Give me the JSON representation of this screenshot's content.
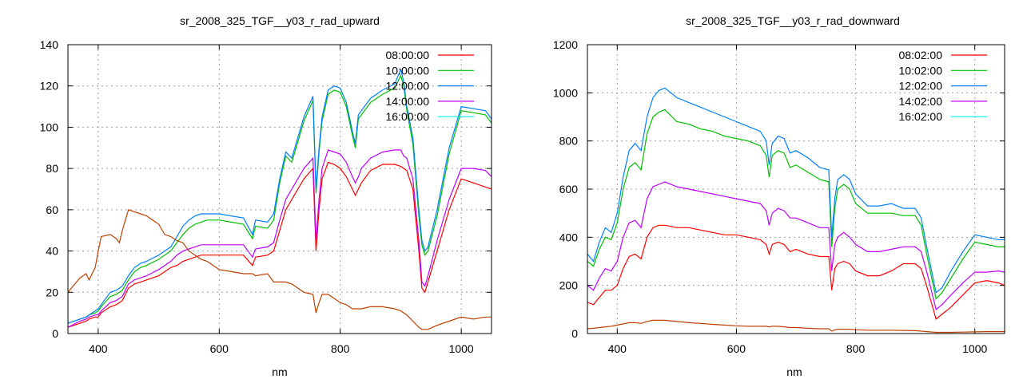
{
  "chart_data": [
    {
      "type": "line",
      "title": "sr_2008_325_TGF__y03_r_rad_upward",
      "xlabel": "nm",
      "ylabel": "",
      "xlim": [
        350,
        1050
      ],
      "ylim": [
        0,
        140
      ],
      "xticks": [
        400,
        600,
        800,
        1000
      ],
      "yticks": [
        0,
        20,
        40,
        60,
        80,
        100,
        120,
        140
      ],
      "grid": true,
      "legend_position": "top-right",
      "x": [
        350,
        370,
        380,
        385,
        395,
        400,
        405,
        420,
        430,
        435,
        440,
        450,
        460,
        470,
        480,
        500,
        510,
        520,
        530,
        540,
        550,
        560,
        570,
        580,
        600,
        620,
        640,
        655,
        660,
        680,
        690,
        700,
        710,
        720,
        740,
        755,
        760,
        765,
        770,
        780,
        790,
        800,
        810,
        820,
        825,
        830,
        835,
        850,
        870,
        890,
        900,
        905,
        910,
        920,
        930,
        935,
        940,
        945,
        960,
        980,
        1000,
        1020,
        1040,
        1050
      ],
      "series": [
        {
          "name": "08:00:00",
          "legend_color": "#ff0000",
          "line_color": "#ff0000",
          "values": [
            3,
            5,
            6,
            7,
            8,
            8,
            10,
            13,
            14,
            15,
            16,
            22,
            24,
            25,
            26,
            28,
            30,
            32,
            33,
            35,
            36,
            37,
            38,
            38,
            38,
            38,
            38,
            33,
            37,
            38,
            40,
            50,
            60,
            65,
            75,
            80,
            40,
            60,
            75,
            83,
            82,
            80,
            76,
            70,
            67,
            70,
            73,
            79,
            82,
            82,
            81,
            80,
            79,
            70,
            40,
            22,
            20,
            25,
            40,
            60,
            75,
            73,
            71,
            70
          ]
        },
        {
          "name": "10:00:00",
          "legend_color": "#00c000",
          "line_color": "#00c000",
          "values": [
            5,
            7,
            8,
            9,
            10,
            11,
            13,
            18,
            19,
            20,
            21,
            26,
            30,
            32,
            33,
            36,
            38,
            40,
            44,
            48,
            51,
            53,
            54,
            55,
            55,
            54,
            53,
            46,
            52,
            51,
            55,
            73,
            86,
            83,
            103,
            113,
            68,
            88,
            103,
            116,
            118,
            117,
            110,
            96,
            90,
            104,
            106,
            112,
            116,
            119,
            125,
            120,
            108,
            92,
            57,
            43,
            38,
            40,
            57,
            87,
            108,
            107,
            106,
            102
          ]
        },
        {
          "name": "12:00:00",
          "legend_color": "#0080ff",
          "line_color": "#0080ff",
          "values": [
            5,
            7,
            8,
            9,
            11,
            12,
            14,
            20,
            21,
            22,
            23,
            28,
            32,
            34,
            35,
            38,
            40,
            42,
            47,
            52,
            55,
            57,
            58,
            58,
            58,
            57,
            56,
            48,
            55,
            54,
            58,
            75,
            88,
            85,
            105,
            115,
            70,
            90,
            105,
            118,
            120,
            119,
            112,
            98,
            92,
            106,
            108,
            114,
            118,
            121,
            128,
            122,
            110,
            95,
            60,
            45,
            40,
            42,
            60,
            90,
            110,
            109,
            108,
            104
          ]
        },
        {
          "name": "14:00:00",
          "legend_color": "#c000ff",
          "line_color": "#c000ff",
          "values": [
            3,
            6,
            7,
            8,
            9,
            9,
            11,
            15,
            16,
            17,
            18,
            24,
            26,
            27,
            28,
            31,
            33,
            35,
            38,
            40,
            41,
            42,
            43,
            43,
            43,
            43,
            43,
            37,
            41,
            42,
            44,
            55,
            65,
            70,
            80,
            85,
            45,
            65,
            80,
            89,
            88,
            87,
            83,
            76,
            73,
            76,
            80,
            85,
            88,
            89,
            89,
            86,
            85,
            75,
            45,
            25,
            23,
            28,
            45,
            65,
            80,
            80,
            79,
            76
          ]
        },
        {
          "name": "16:00:00",
          "legend_color": "#00eeee",
          "line_color": "#c04000",
          "values": [
            20,
            27,
            29,
            26,
            32,
            40,
            47,
            48,
            46,
            44,
            50,
            60,
            59,
            58,
            57,
            53,
            48,
            47,
            45,
            44,
            40,
            38,
            36,
            35,
            31,
            30,
            29,
            29,
            28,
            29,
            25,
            25,
            25,
            24,
            20,
            19,
            10,
            15,
            19,
            19,
            17,
            15,
            14,
            12,
            12,
            12,
            12,
            13,
            13,
            12,
            11,
            10,
            9,
            6,
            3,
            2,
            2,
            2,
            4,
            6,
            8,
            7,
            8,
            8
          ]
        }
      ]
    },
    {
      "type": "line",
      "title": "sr_2008_325_TGF__y03_r_rad_downward",
      "xlabel": "nm",
      "ylabel": "",
      "xlim": [
        350,
        1050
      ],
      "ylim": [
        0,
        1200
      ],
      "xticks": [
        400,
        600,
        800,
        1000
      ],
      "yticks": [
        0,
        200,
        400,
        600,
        800,
        1000,
        1200
      ],
      "grid": true,
      "legend_position": "top-right",
      "x": [
        350,
        360,
        370,
        380,
        390,
        400,
        410,
        420,
        430,
        440,
        450,
        460,
        470,
        480,
        500,
        520,
        540,
        560,
        580,
        600,
        620,
        640,
        650,
        655,
        660,
        670,
        680,
        690,
        700,
        720,
        740,
        755,
        760,
        765,
        770,
        780,
        790,
        800,
        820,
        840,
        860,
        880,
        900,
        910,
        920,
        935,
        945,
        960,
        980,
        1000,
        1020,
        1040,
        1050
      ],
      "series": [
        {
          "name": "08:02:00",
          "legend_color": "#ff0000",
          "line_color": "#ff0000",
          "values": [
            130,
            120,
            150,
            180,
            180,
            200,
            270,
            320,
            330,
            310,
            400,
            440,
            450,
            450,
            440,
            440,
            430,
            420,
            410,
            410,
            400,
            390,
            370,
            330,
            370,
            380,
            370,
            340,
            350,
            330,
            320,
            320,
            180,
            270,
            290,
            300,
            290,
            260,
            240,
            240,
            260,
            290,
            290,
            270,
            190,
            60,
            80,
            110,
            160,
            210,
            220,
            210,
            200
          ]
        },
        {
          "name": "10:02:00",
          "legend_color": "#00c000",
          "line_color": "#00c000",
          "values": [
            300,
            280,
            350,
            400,
            390,
            460,
            600,
            690,
            710,
            680,
            830,
            900,
            920,
            930,
            880,
            870,
            850,
            840,
            820,
            810,
            800,
            780,
            740,
            650,
            740,
            760,
            750,
            690,
            700,
            670,
            640,
            630,
            360,
            520,
            600,
            620,
            600,
            540,
            500,
            500,
            500,
            490,
            490,
            450,
            320,
            145,
            170,
            230,
            310,
            380,
            370,
            360,
            360
          ]
        },
        {
          "name": "12:02:00",
          "legend_color": "#0080ff",
          "line_color": "#0080ff",
          "values": [
            330,
            300,
            380,
            440,
            420,
            500,
            650,
            760,
            790,
            760,
            900,
            980,
            1010,
            1020,
            980,
            960,
            940,
            920,
            900,
            880,
            860,
            840,
            800,
            700,
            790,
            820,
            810,
            750,
            760,
            730,
            690,
            680,
            400,
            560,
            640,
            660,
            640,
            580,
            530,
            530,
            540,
            520,
            520,
            480,
            350,
            170,
            190,
            260,
            340,
            410,
            400,
            390,
            390
          ]
        },
        {
          "name": "14:02:00",
          "legend_color": "#c000ff",
          "line_color": "#c000ff",
          "values": [
            200,
            180,
            230,
            270,
            260,
            300,
            400,
            460,
            470,
            440,
            560,
            610,
            620,
            630,
            610,
            600,
            590,
            580,
            570,
            560,
            550,
            540,
            510,
            450,
            500,
            520,
            510,
            480,
            480,
            460,
            440,
            440,
            260,
            370,
            400,
            420,
            400,
            370,
            340,
            340,
            350,
            360,
            360,
            340,
            250,
            100,
            120,
            160,
            210,
            255,
            255,
            260,
            255
          ]
        },
        {
          "name": "16:02:00",
          "legend_color": "#00eeee",
          "line_color": "#c04000",
          "values": [
            20,
            22,
            25,
            28,
            30,
            35,
            40,
            45,
            45,
            42,
            50,
            55,
            55,
            55,
            50,
            45,
            42,
            38,
            35,
            32,
            30,
            30,
            30,
            28,
            30,
            30,
            28,
            25,
            25,
            22,
            20,
            20,
            10,
            15,
            18,
            18,
            18,
            16,
            14,
            14,
            14,
            13,
            12,
            10,
            8,
            5,
            5,
            5,
            6,
            7,
            8,
            8,
            8
          ]
        }
      ]
    }
  ]
}
